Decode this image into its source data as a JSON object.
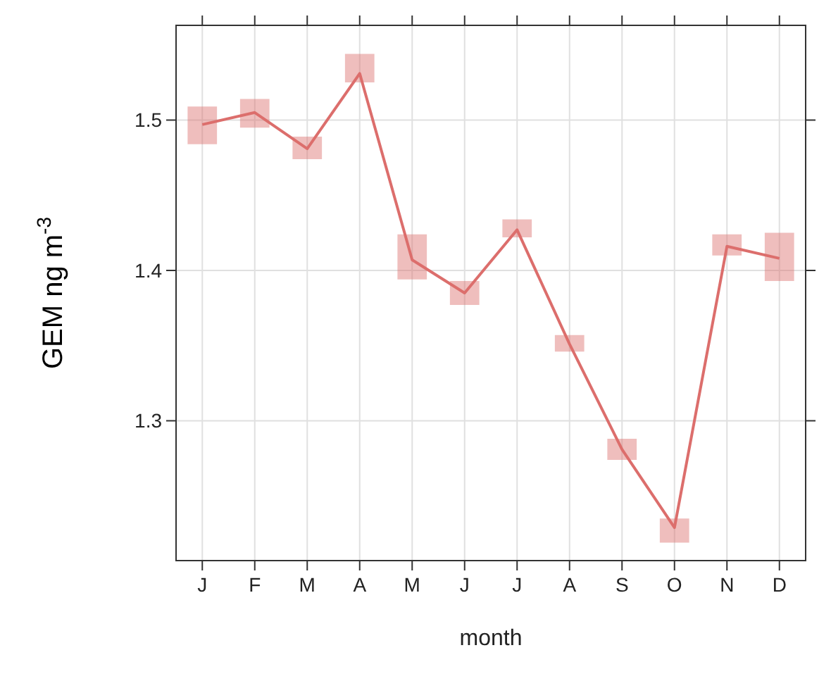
{
  "chart_data": {
    "type": "line",
    "xlabel": "month",
    "ylabel": "GEM ng m$^{-3}$",
    "categories": [
      "J",
      "F",
      "M",
      "A",
      "M",
      "J",
      "J",
      "A",
      "S",
      "O",
      "N",
      "D"
    ],
    "series": [
      {
        "color": "#dc6e6c",
        "values": [
          1.497,
          1.505,
          1.481,
          1.531,
          1.407,
          1.385,
          1.427,
          1.351,
          1.281,
          1.229,
          1.416,
          1.408
        ],
        "errors": [
          [
            1.484,
            1.509
          ],
          [
            1.495,
            1.514
          ],
          [
            1.474,
            1.489
          ],
          [
            1.525,
            1.544
          ],
          [
            1.394,
            1.424
          ],
          [
            1.377,
            1.393
          ],
          [
            1.422,
            1.434
          ],
          [
            1.346,
            1.357
          ],
          [
            1.274,
            1.288
          ],
          [
            1.219,
            1.235
          ],
          [
            1.41,
            1.424
          ],
          [
            1.393,
            1.425
          ]
        ]
      }
    ],
    "ylim": [
      1.207,
      1.563
    ],
    "yticks": [
      1.3,
      1.4,
      1.5
    ],
    "grid": true,
    "marker": "none",
    "line_style": "solid"
  }
}
